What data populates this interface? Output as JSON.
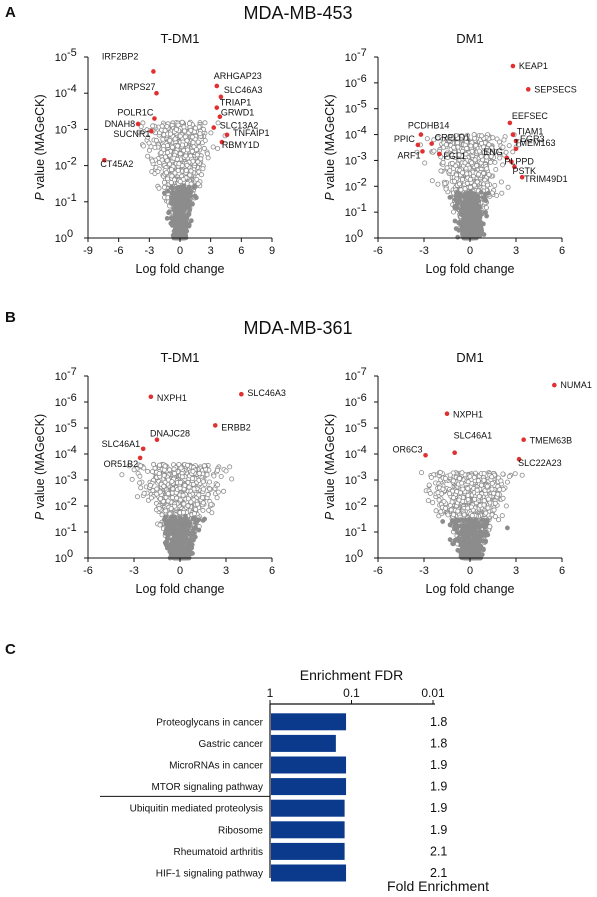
{
  "panels": {
    "A": {
      "letter": "A",
      "cell_line": "MDA-MB-453"
    },
    "B": {
      "letter": "B",
      "cell_line": "MDA-MB-361"
    },
    "C": {
      "letter": "C"
    }
  },
  "colors": {
    "background_points": "#8c8c8c",
    "hit_points": "#e03030",
    "bars": "#0b3a8c",
    "axes": "#111111"
  },
  "chart_data": [
    {
      "type": "scatter",
      "id": "A-TDM1",
      "title": "T-DM1",
      "xlabel": "Log fold change",
      "ylabel_italic": "P",
      "ylabel_rest": " value (MAGeCK)",
      "xlim": [
        -9,
        9
      ],
      "xticks": [
        "-9",
        "-6",
        "-3",
        "0",
        "3",
        "6",
        "9"
      ],
      "y_scale": "log10-reversed",
      "ylim_exponent": [
        0,
        -5
      ],
      "yticks": [
        0,
        -1,
        -2,
        -3,
        -4,
        -5
      ],
      "cloud": {
        "spread_x": 3.0,
        "max_neglog10p": 3.2
      },
      "hits": [
        {
          "gene": "IRF2BP2",
          "x": -2.6,
          "p_exp": -4.6
        },
        {
          "gene": "MRPS27",
          "x": -2.3,
          "p_exp": -4.0
        },
        {
          "gene": "POLR1C",
          "x": -2.5,
          "p_exp": -3.3
        },
        {
          "gene": "DNAH8",
          "x": -4.1,
          "p_exp": -3.15
        },
        {
          "gene": "SUCNR1",
          "x": -2.8,
          "p_exp": -2.95
        },
        {
          "gene": "CT45A2",
          "x": -7.4,
          "p_exp": -2.15
        },
        {
          "gene": "ARHGAP23",
          "x": 3.6,
          "p_exp": -4.2
        },
        {
          "gene": "SLC46A3",
          "x": 4.0,
          "p_exp": -3.9
        },
        {
          "gene": "TRIAP1",
          "x": 3.6,
          "p_exp": -3.6
        },
        {
          "gene": "GRWD1",
          "x": 3.9,
          "p_exp": -3.35
        },
        {
          "gene": "SLC13A2",
          "x": 3.3,
          "p_exp": -3.05
        },
        {
          "gene": "TNFAIP1",
          "x": 4.6,
          "p_exp": -2.85
        },
        {
          "gene": "RBMY1D",
          "x": 4.1,
          "p_exp": -2.65
        }
      ]
    },
    {
      "type": "scatter",
      "id": "A-DM1",
      "title": "DM1",
      "xlabel": "Log fold change",
      "ylabel_italic": "P",
      "ylabel_rest": " value (MAGeCK)",
      "xlim": [
        -6,
        6
      ],
      "xticks": [
        "-6",
        "-3",
        "0",
        "3",
        "6"
      ],
      "y_scale": "log10-reversed",
      "ylim_exponent": [
        0,
        -7
      ],
      "yticks": [
        0,
        -1,
        -2,
        -3,
        -4,
        -5,
        -6,
        -7
      ],
      "cloud": {
        "spread_x": 2.3,
        "max_neglog10p": 4.0
      },
      "hits": [
        {
          "gene": "KEAP1",
          "x": 2.8,
          "p_exp": -6.65
        },
        {
          "gene": "SEPSECS",
          "x": 3.8,
          "p_exp": -5.75
        },
        {
          "gene": "PCDHB14",
          "x": -3.2,
          "p_exp": -4.0
        },
        {
          "gene": "CRELD1",
          "x": -2.5,
          "p_exp": -3.65
        },
        {
          "gene": "PPIC",
          "x": -3.4,
          "p_exp": -3.6
        },
        {
          "gene": "ARF1",
          "x": -3.1,
          "p_exp": -3.35
        },
        {
          "gene": "FGL1",
          "x": -2.0,
          "p_exp": -3.25
        },
        {
          "gene": "EEFSEC",
          "x": 2.6,
          "p_exp": -4.45
        },
        {
          "gene": "TIAM1",
          "x": 2.8,
          "p_exp": -4.0
        },
        {
          "gene": "EGR3",
          "x": 3.0,
          "p_exp": -3.75
        },
        {
          "gene": "TMEM163",
          "x": 3.0,
          "p_exp": -3.45
        },
        {
          "gene": "ENG",
          "x": 2.4,
          "p_exp": -3.1
        },
        {
          "gene": "PLPPD",
          "x": 2.7,
          "p_exp": -2.95
        },
        {
          "gene": "PSTK",
          "x": 2.9,
          "p_exp": -2.75
        },
        {
          "gene": "TRIM49D1",
          "x": 3.4,
          "p_exp": -2.35
        }
      ]
    },
    {
      "type": "scatter",
      "id": "B-TDM1",
      "title": "T-DM1",
      "xlabel": "Log fold change",
      "ylabel_italic": "P",
      "ylabel_rest": " value (MAGeCK)",
      "xlim": [
        -6,
        6
      ],
      "xticks": [
        "-6",
        "-3",
        "0",
        "3",
        "6"
      ],
      "y_scale": "log10-reversed",
      "ylim_exponent": [
        0,
        -7
      ],
      "yticks": [
        0,
        -1,
        -2,
        -3,
        -4,
        -5,
        -6,
        -7
      ],
      "cloud": {
        "spread_x": 2.5,
        "max_neglog10p": 3.6
      },
      "hits": [
        {
          "gene": "NXPH1",
          "x": -1.9,
          "p_exp": -6.2
        },
        {
          "gene": "SLC46A3",
          "x": 4.0,
          "p_exp": -6.3
        },
        {
          "gene": "ERBB2",
          "x": 2.3,
          "p_exp": -5.1
        },
        {
          "gene": "DNAJC28",
          "x": -1.5,
          "p_exp": -4.55
        },
        {
          "gene": "SLC46A1",
          "x": -2.4,
          "p_exp": -4.2
        },
        {
          "gene": "OR51B2",
          "x": -2.6,
          "p_exp": -3.85
        }
      ]
    },
    {
      "type": "scatter",
      "id": "B-DM1",
      "title": "DM1",
      "xlabel": "Log fold change",
      "ylabel_italic": "P",
      "ylabel_rest": " value (MAGeCK)",
      "xlim": [
        -6,
        6
      ],
      "xticks": [
        "-6",
        "-3",
        "0",
        "3",
        "6"
      ],
      "y_scale": "log10-reversed",
      "ylim_exponent": [
        0,
        -7
      ],
      "yticks": [
        0,
        -1,
        -2,
        -3,
        -4,
        -5,
        -6,
        -7
      ],
      "cloud": {
        "spread_x": 2.6,
        "max_neglog10p": 3.3
      },
      "hits": [
        {
          "gene": "NUMA1",
          "x": 5.5,
          "p_exp": -6.65
        },
        {
          "gene": "NXPH1",
          "x": -1.5,
          "p_exp": -5.55
        },
        {
          "gene": "TMEM63B",
          "x": 3.5,
          "p_exp": -4.55
        },
        {
          "gene": "OR6C3",
          "x": -2.9,
          "p_exp": -3.95
        },
        {
          "gene": "SLC46A1",
          "x": -1.0,
          "p_exp": -4.05
        },
        {
          "gene": "SLC22A23",
          "x": 3.2,
          "p_exp": -3.8
        }
      ]
    },
    {
      "type": "bar",
      "id": "C-enrichment",
      "orientation": "horizontal",
      "x_title": "Enrichment FDR",
      "x_scale": "log10-reversed",
      "x_ticks": [
        "1",
        "0.1",
        "0.01"
      ],
      "x_range_exponent": [
        0,
        -2
      ],
      "right_title": "Fold Enrichment",
      "categories": [
        "Proteoglycans in cancer",
        "Gastric cancer",
        "MicroRNAs in cancer",
        "MTOR signaling pathway",
        "Ubiquitin mediated proteolysis",
        "Ribosome",
        "Rheumatoid arthritis",
        "HIF-1 signaling pathway"
      ],
      "fdr": [
        0.12,
        0.16,
        0.12,
        0.12,
        0.125,
        0.125,
        0.125,
        0.12
      ],
      "fold_enrichment": [
        "1.8",
        "1.8",
        "1.9",
        "1.9",
        "1.9",
        "1.9",
        "2.1",
        "2.1"
      ]
    }
  ]
}
